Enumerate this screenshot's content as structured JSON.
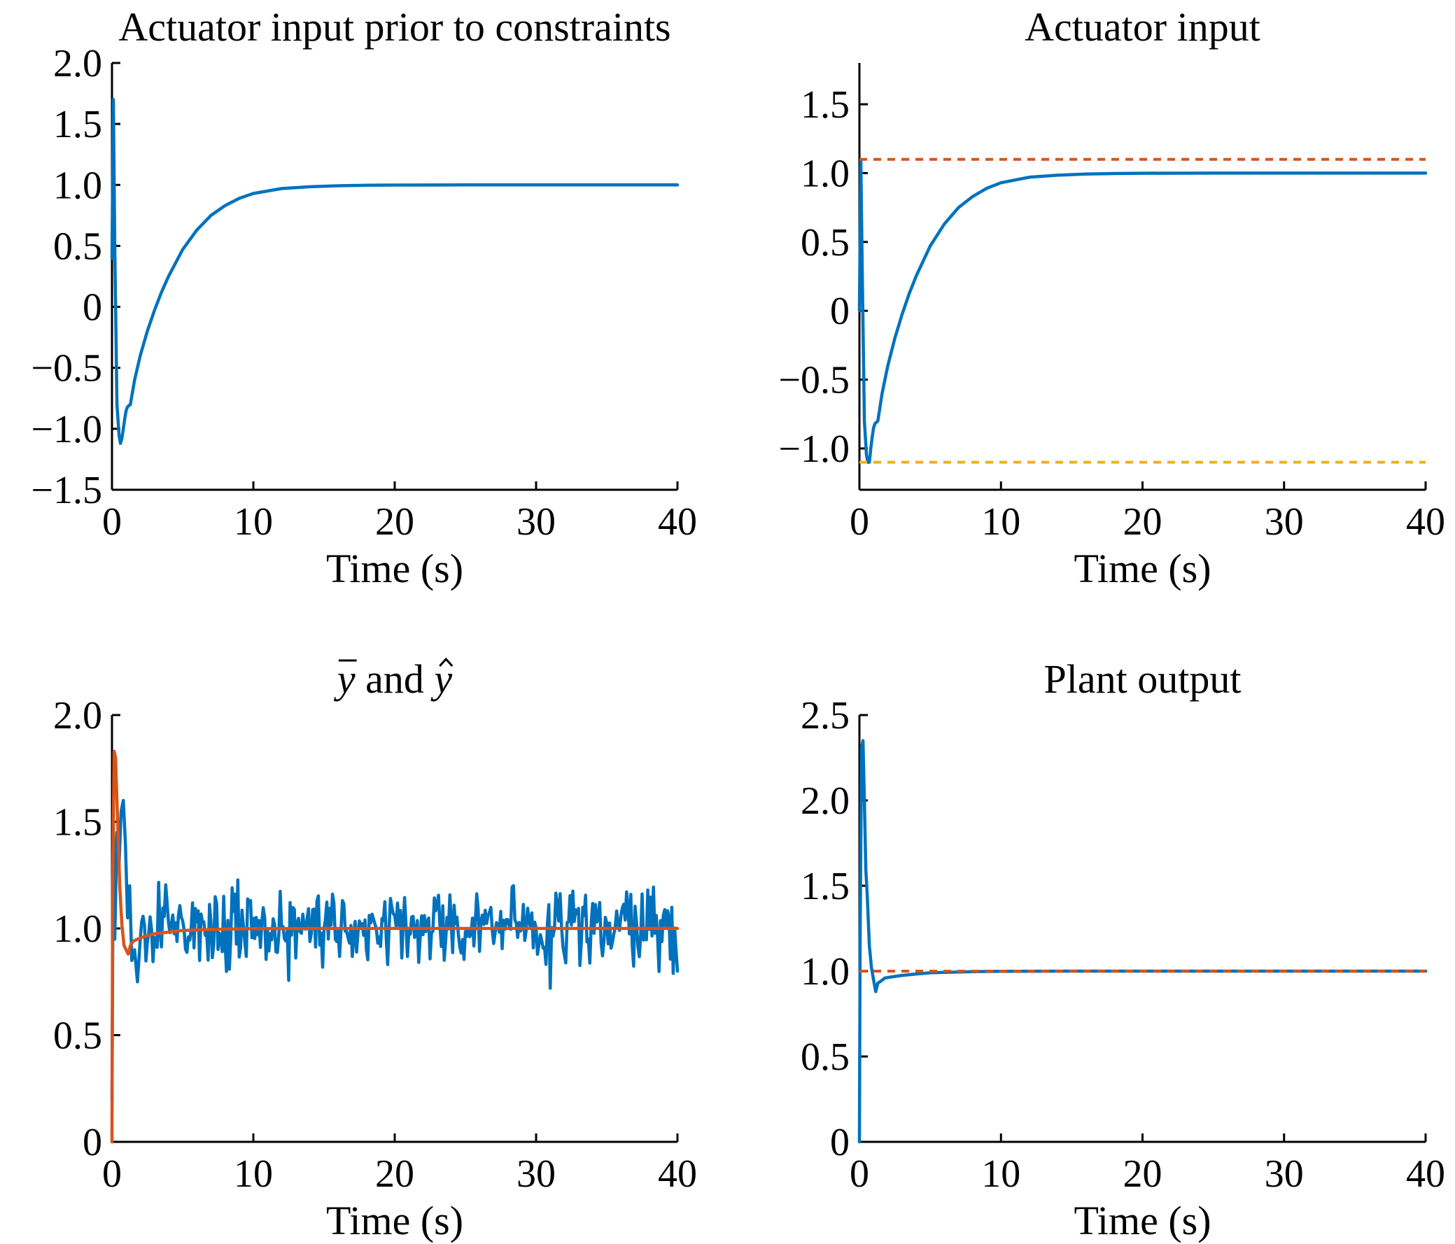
{
  "chart_data": [
    {
      "type": "line",
      "title": "Actuator input prior to constraints",
      "xlabel": "Time (s)",
      "ylabel": "",
      "xlim": [
        0,
        40
      ],
      "ylim": [
        -1.5,
        2.0
      ],
      "xticks": [
        0,
        10,
        20,
        30,
        40
      ],
      "xtick_labels": [
        "0",
        "10",
        "20",
        "30",
        "40"
      ],
      "yticks": [
        -1.5,
        -1.0,
        -0.5,
        0,
        0.5,
        1.0,
        1.5,
        2.0
      ],
      "ytick_labels": [
        "−1.5",
        "−1.0",
        "−0.5",
        "0",
        "0.5",
        "1.0",
        "1.5",
        "2.0"
      ],
      "grid": false,
      "series": [
        {
          "color": "#0072BD",
          "x": [
            0,
            0.1,
            0.2,
            0.35,
            0.5,
            0.6,
            0.7,
            0.8,
            0.9,
            1.0,
            1.1,
            1.3,
            1.6,
            2,
            2.5,
            3,
            3.5,
            4,
            5,
            6,
            7,
            8,
            9,
            10,
            12,
            14,
            16,
            18,
            20,
            25,
            30,
            35,
            40
          ],
          "y": [
            0.4,
            1.7,
            0.5,
            -0.8,
            -1.05,
            -1.12,
            -1.08,
            -1.0,
            -0.92,
            -0.85,
            -0.82,
            -0.8,
            -0.6,
            -0.4,
            -0.2,
            -0.03,
            0.12,
            0.25,
            0.47,
            0.63,
            0.75,
            0.83,
            0.89,
            0.93,
            0.97,
            0.985,
            0.993,
            0.997,
            0.999,
            1.0,
            1.0,
            1.0,
            1.0
          ]
        }
      ]
    },
    {
      "type": "line",
      "title": "Actuator input",
      "xlabel": "Time (s)",
      "ylabel": "",
      "xlim": [
        0,
        40
      ],
      "ylim": [
        -1.3,
        1.8
      ],
      "xticks": [
        0,
        10,
        20,
        30,
        40
      ],
      "xtick_labels": [
        "0",
        "10",
        "20",
        "30",
        "40"
      ],
      "yticks": [
        -1.0,
        -0.5,
        0,
        0.5,
        1.0,
        1.5
      ],
      "ytick_labels": [
        "−1.0",
        "−0.5",
        "0",
        "0.5",
        "1.0",
        "1.5"
      ],
      "grid": false,
      "series": [
        {
          "color": "#0072BD",
          "x": [
            0,
            0.1,
            0.2,
            0.35,
            0.5,
            0.6,
            0.7,
            0.8,
            0.9,
            1.0,
            1.1,
            1.3,
            1.6,
            2,
            2.5,
            3,
            3.5,
            4,
            5,
            6,
            7,
            8,
            9,
            10,
            12,
            14,
            16,
            18,
            20,
            25,
            30,
            35,
            40
          ],
          "y": [
            0.0,
            1.1,
            0.3,
            -0.8,
            -1.05,
            -1.1,
            -1.1,
            -1.0,
            -0.92,
            -0.85,
            -0.82,
            -0.8,
            -0.6,
            -0.4,
            -0.2,
            -0.03,
            0.12,
            0.25,
            0.47,
            0.63,
            0.75,
            0.83,
            0.89,
            0.93,
            0.97,
            0.985,
            0.993,
            0.997,
            0.999,
            1.0,
            1.0,
            1.0,
            1.0
          ]
        },
        {
          "color": "#D95319",
          "dashed": true,
          "x": [
            0,
            40
          ],
          "y": [
            1.1,
            1.1
          ]
        },
        {
          "color": "#EDB120",
          "dashed": true,
          "x": [
            0,
            40
          ],
          "y": [
            -1.1,
            -1.1
          ]
        }
      ]
    },
    {
      "type": "line",
      "title_parts": [
        "y",
        " and ",
        "y"
      ],
      "xlabel": "Time (s)",
      "ylabel": "",
      "xlim": [
        0,
        40
      ],
      "ylim": [
        0,
        2.0
      ],
      "xticks": [
        0,
        10,
        20,
        30,
        40
      ],
      "xtick_labels": [
        "0",
        "10",
        "20",
        "30",
        "40"
      ],
      "yticks": [
        0,
        0.5,
        1.0,
        1.5,
        2.0
      ],
      "ytick_labels": [
        "0",
        "0.5",
        "1.0",
        "1.5",
        "2.0"
      ],
      "grid": false,
      "noise_series": {
        "color": "#0072BD",
        "dt": 0.1,
        "transient_x": [
          0,
          0.1,
          0.2,
          0.35,
          0.5,
          0.65,
          0.8,
          0.95,
          1.1,
          1.25,
          1.4,
          1.6,
          1.8,
          2.0
        ],
        "transient_y": [
          0.2,
          1.5,
          0.95,
          1.45,
          1.3,
          1.55,
          1.6,
          1.4,
          1.05,
          1.2,
          0.85,
          0.9,
          0.75,
          0.95
        ],
        "noise_std": 0.1,
        "noise_min": 0.72,
        "noise_max": 1.3,
        "end_value": 0.8
      },
      "series": [
        {
          "color": "#D95319",
          "x": [
            0,
            0.05,
            0.15,
            0.25,
            0.4,
            0.55,
            0.7,
            0.85,
            1.0,
            1.15,
            1.3,
            1.5,
            1.8,
            2.2,
            3,
            4,
            5,
            6,
            8,
            10,
            15,
            20,
            30,
            40
          ],
          "y": [
            0.0,
            1.2,
            1.83,
            1.8,
            1.5,
            1.2,
            1.02,
            0.92,
            0.9,
            0.88,
            0.92,
            0.94,
            0.95,
            0.96,
            0.975,
            0.983,
            0.99,
            0.993,
            0.997,
            0.999,
            1.0,
            1.0,
            1.0,
            1.0
          ]
        }
      ]
    },
    {
      "type": "line",
      "title": "Plant output",
      "xlabel": "Time (s)",
      "ylabel": "",
      "xlim": [
        0,
        40
      ],
      "ylim": [
        0,
        2.5
      ],
      "xticks": [
        0,
        10,
        20,
        30,
        40
      ],
      "xtick_labels": [
        "0",
        "10",
        "20",
        "30",
        "40"
      ],
      "yticks": [
        0,
        0.5,
        1.0,
        1.5,
        2.0,
        2.5
      ],
      "ytick_labels": [
        "0",
        "0.5",
        "1.0",
        "1.5",
        "2.0",
        "2.5"
      ],
      "grid": false,
      "series": [
        {
          "color": "#0072BD",
          "x": [
            0,
            0.05,
            0.15,
            0.25,
            0.35,
            0.45,
            0.55,
            0.7,
            0.85,
            1.0,
            1.15,
            1.3,
            1.5,
            1.8,
            2.2,
            3,
            4,
            5,
            6,
            8,
            10,
            15,
            20,
            30,
            40
          ],
          "y": [
            0.0,
            1.2,
            2.3,
            2.35,
            2.0,
            1.6,
            1.45,
            1.15,
            1.02,
            0.95,
            0.88,
            0.93,
            0.94,
            0.96,
            0.965,
            0.975,
            0.983,
            0.99,
            0.993,
            0.997,
            0.999,
            1.0,
            1.0,
            1.0,
            1.0
          ]
        },
        {
          "color": "#D95319",
          "dashed": true,
          "x": [
            0,
            40
          ],
          "y": [
            1.0,
            1.0
          ]
        }
      ]
    }
  ]
}
